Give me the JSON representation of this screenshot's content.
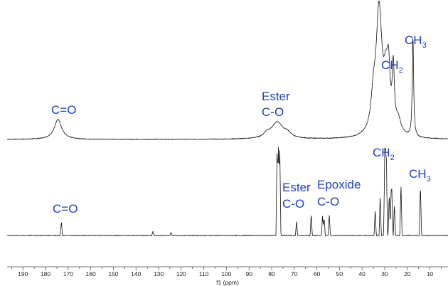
{
  "chart_data": {
    "type": "line",
    "xlabel": "f1 (ppm)",
    "x_reversed": true,
    "xlim": [
      197,
      2
    ],
    "ticks": [
      190,
      180,
      170,
      160,
      150,
      140,
      130,
      120,
      110,
      100,
      90,
      80,
      70,
      60,
      50,
      40,
      30,
      20,
      10
    ],
    "grid": false,
    "legend": "none",
    "color": "#1f3fbf",
    "series": [
      {
        "kind": "broad",
        "noise": 0.5,
        "peaks": [
          {
            "ppm": 174.5,
            "height": 28,
            "width": 2.0
          },
          {
            "ppm": 82.0,
            "height": 6,
            "width": 1.8
          },
          {
            "ppm": 77.5,
            "height": 23,
            "width": 3.0
          },
          {
            "ppm": 73.0,
            "height": 6,
            "width": 2.0
          },
          {
            "ppm": 35.0,
            "height": 40,
            "width": 1.2
          },
          {
            "ppm": 32.5,
            "height": 175,
            "width": 1.6
          },
          {
            "ppm": 29.5,
            "height": 60,
            "width": 1.2
          },
          {
            "ppm": 28.3,
            "height": 70,
            "width": 0.8
          },
          {
            "ppm": 26.2,
            "height": 85,
            "width": 0.55
          },
          {
            "ppm": 24.0,
            "height": 20,
            "width": 1.5
          },
          {
            "ppm": 17.5,
            "height": 142,
            "width": 0.35
          }
        ]
      },
      {
        "kind": "sharp",
        "noise": 0.5,
        "peaks": [
          {
            "ppm": 173.0,
            "height": 20
          },
          {
            "ppm": 132.5,
            "height": 6
          },
          {
            "ppm": 124.5,
            "height": 4
          },
          {
            "ppm": 77.6,
            "height": 126
          },
          {
            "ppm": 77.0,
            "height": 128
          },
          {
            "ppm": 76.4,
            "height": 124
          },
          {
            "ppm": 69.0,
            "height": 20
          },
          {
            "ppm": 62.5,
            "height": 31
          },
          {
            "ppm": 57.5,
            "height": 28
          },
          {
            "ppm": 56.8,
            "height": 26
          },
          {
            "ppm": 54.5,
            "height": 30
          },
          {
            "ppm": 34.2,
            "height": 37
          },
          {
            "ppm": 32.0,
            "height": 57
          },
          {
            "ppm": 30.0,
            "height": 103
          },
          {
            "ppm": 29.6,
            "height": 96
          },
          {
            "ppm": 29.2,
            "height": 88
          },
          {
            "ppm": 28.0,
            "height": 60
          },
          {
            "ppm": 27.2,
            "height": 52
          },
          {
            "ppm": 26.8,
            "height": 55
          },
          {
            "ppm": 25.7,
            "height": 45
          },
          {
            "ppm": 22.8,
            "height": 74
          },
          {
            "ppm": 14.2,
            "height": 73
          }
        ]
      }
    ]
  },
  "annotations": {
    "top_co": "C=O",
    "top_ester_1": "Ester",
    "top_ester_2": "C-O",
    "top_ch2": "CH",
    "top_ch2_sub": "2",
    "top_ch3": "CH",
    "top_ch3_sub": "3",
    "bottom_co": "C=O",
    "bottom_ester_1": "Ester",
    "bottom_ester_2": "C-O",
    "bottom_epoxide_1": "Epoxide",
    "bottom_epoxide_2": "C-O",
    "bottom_ch2": "CH",
    "bottom_ch2_sub": "2",
    "bottom_ch3": "CH",
    "bottom_ch3_sub": "3"
  }
}
